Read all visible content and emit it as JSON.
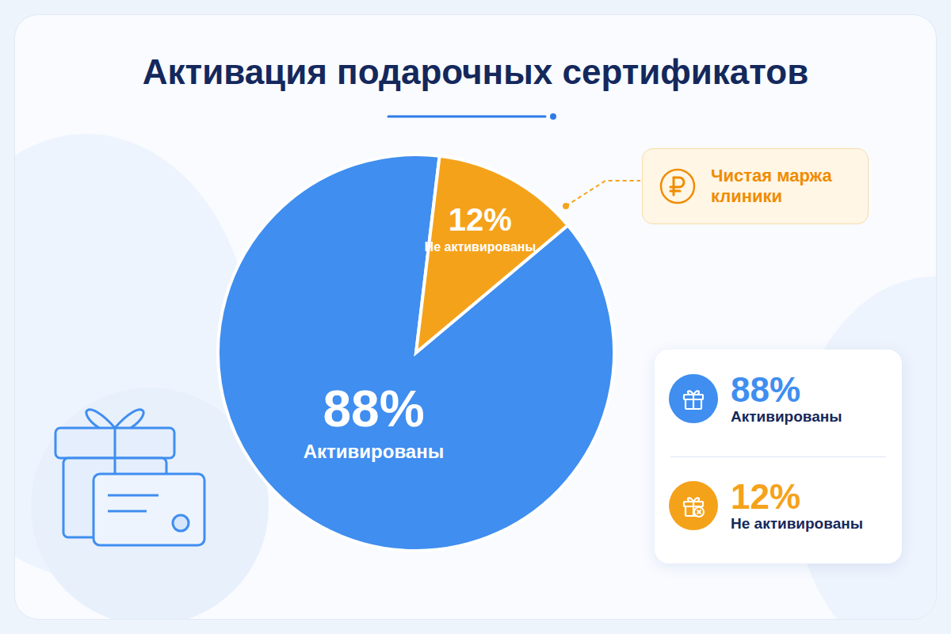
{
  "chart_data": {
    "type": "pie",
    "title": "Активация подарочных сертификатов",
    "categories": [
      "Активированы",
      "Не активированы"
    ],
    "values": [
      88,
      12
    ],
    "value_labels": [
      "88%",
      "12%"
    ],
    "colors": [
      "#3f8ef0",
      "#f5a21b"
    ],
    "data_labels": true,
    "legend": "right",
    "annotation": "Чистая маржа клиники"
  }
}
